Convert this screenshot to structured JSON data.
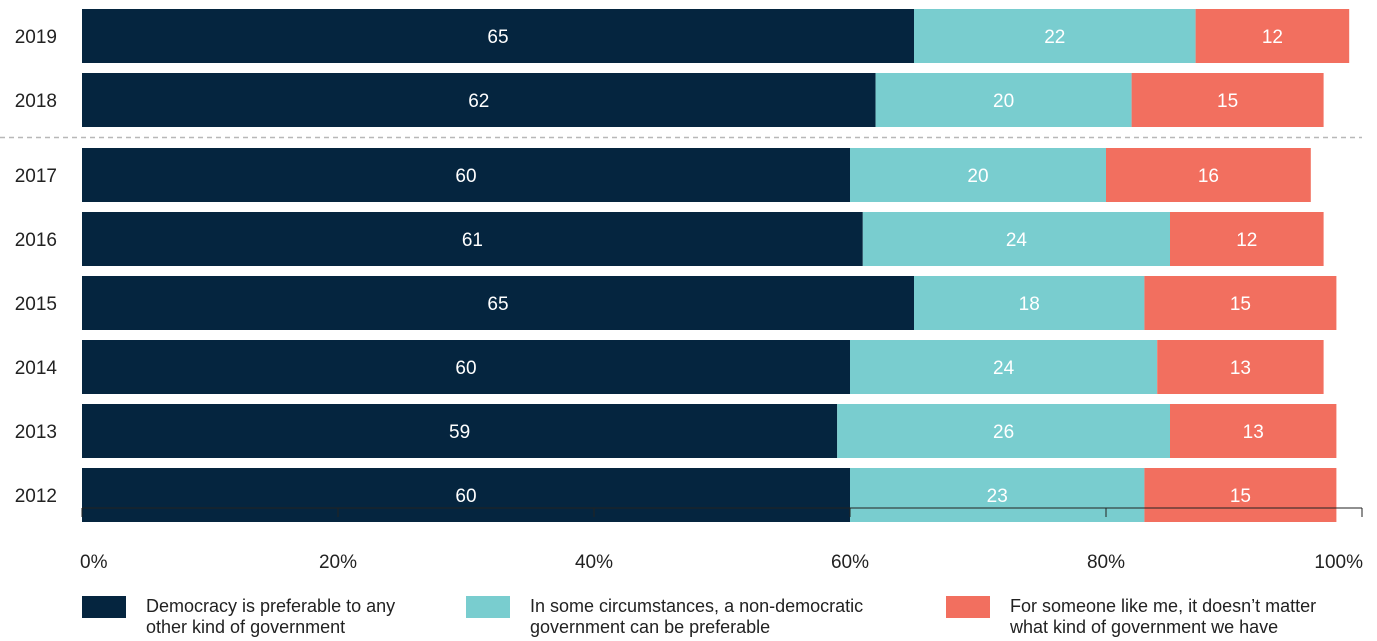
{
  "chart_data": {
    "type": "bar",
    "orientation": "horizontal",
    "stacked": true,
    "categories": [
      "2019",
      "2018",
      "2017",
      "2016",
      "2015",
      "2014",
      "2013",
      "2012"
    ],
    "series": [
      {
        "name": "Democracy is preferable to any other kind of government",
        "name_lines": [
          "Democracy is preferable to any",
          "other kind of government"
        ],
        "color": "#05253f",
        "values": [
          65,
          62,
          60,
          61,
          65,
          60,
          59,
          60
        ]
      },
      {
        "name": "In some circumstances, a non-democratic government can be preferable",
        "name_lines": [
          "In some circumstances, a non-democratic",
          "government can be preferable"
        ],
        "color": "#79cdcf",
        "values": [
          22,
          20,
          20,
          24,
          18,
          24,
          26,
          23
        ]
      },
      {
        "name": "For someone like me, it doesn’t matter what kind of government we have",
        "name_lines": [
          "For someone like me, it doesn’t matter",
          "what kind of government we have"
        ],
        "color": "#f26f5f",
        "values": [
          12,
          15,
          16,
          12,
          15,
          13,
          13,
          15
        ]
      }
    ],
    "xlim": [
      0,
      100
    ],
    "x_ticks": [
      "0%",
      "20%",
      "40%",
      "60%",
      "80%",
      "100%"
    ],
    "separator_after_category": "2018",
    "legend_position": "bottom",
    "grid": false,
    "title": "",
    "xlabel": "",
    "ylabel": ""
  }
}
